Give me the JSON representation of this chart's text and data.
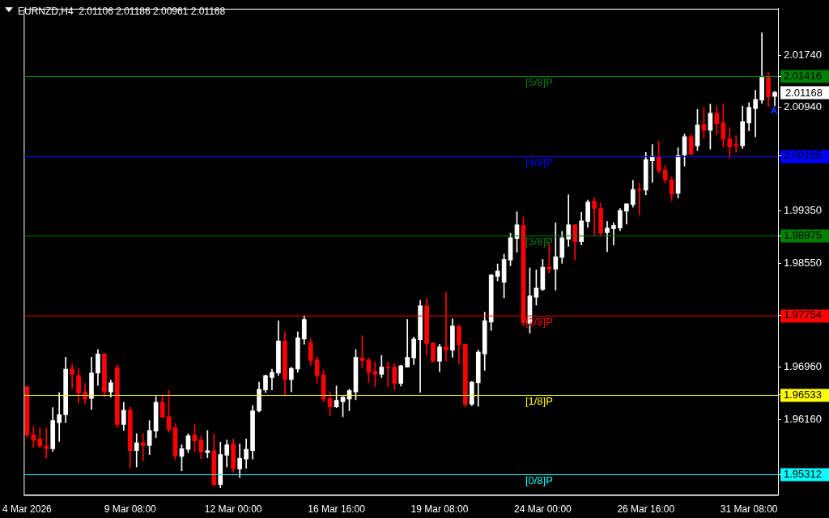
{
  "chart_data": {
    "type": "candlestick",
    "title": "EURNZD,H4  2.01106 2.01186 2.00961 2.01168",
    "categories": [
      "4 Mar 2026",
      null,
      null,
      null,
      null,
      null,
      null,
      null,
      null,
      null,
      null,
      null,
      null,
      null,
      null,
      null,
      "9 Mar 08:00",
      null,
      null,
      null,
      null,
      null,
      null,
      null,
      null,
      null,
      null,
      null,
      null,
      null,
      null,
      null,
      "12 Mar 00:00",
      null,
      null,
      null,
      null,
      null,
      null,
      null,
      null,
      null,
      null,
      null,
      null,
      null,
      null,
      null,
      "16 Mar 16:00",
      null,
      null,
      null,
      null,
      null,
      null,
      null,
      null,
      null,
      null,
      null,
      null,
      null,
      null,
      null,
      "19 Mar 08:00",
      null,
      null,
      null,
      null,
      null,
      null,
      null,
      null,
      null,
      null,
      null,
      null,
      null,
      null,
      null,
      "24 Mar 00:00",
      null,
      null,
      null,
      null,
      null,
      null,
      null,
      null,
      null,
      null,
      null,
      null,
      null,
      null,
      null,
      "26 Mar 16:00",
      null,
      null,
      null,
      null,
      null,
      null,
      null,
      null,
      null,
      null,
      null,
      null,
      null,
      null,
      null,
      "31 Mar 08:00",
      null,
      null,
      null,
      null
    ],
    "ohlc": [
      [
        1.9666,
        1.9667,
        1.9588,
        1.9592
      ],
      [
        1.9592,
        1.9605,
        1.9573,
        1.9584
      ],
      [
        1.9586,
        1.9603,
        1.9572,
        1.9575
      ],
      [
        1.9575,
        1.9603,
        1.9557,
        1.9571
      ],
      [
        1.9571,
        1.9634,
        1.9567,
        1.9614
      ],
      [
        1.9611,
        1.9657,
        1.9582,
        1.9623
      ],
      [
        1.9623,
        1.9711,
        1.9611,
        1.9693
      ],
      [
        1.9693,
        1.9701,
        1.9663,
        1.9685
      ],
      [
        1.9683,
        1.9694,
        1.9641,
        1.9656
      ],
      [
        1.9658,
        1.9671,
        1.964,
        1.9647
      ],
      [
        1.9648,
        1.9711,
        1.9631,
        1.9687
      ],
      [
        1.9687,
        1.9723,
        1.9668,
        1.9716
      ],
      [
        1.9716,
        1.9717,
        1.965,
        1.9658
      ],
      [
        1.9658,
        1.9676,
        1.965,
        1.9672
      ],
      [
        1.9695,
        1.97,
        1.9603,
        1.9608
      ],
      [
        1.9608,
        1.9642,
        1.9599,
        1.963
      ],
      [
        1.963,
        1.9635,
        1.9541,
        1.9568
      ],
      [
        1.9568,
        1.9594,
        1.9543,
        1.958
      ],
      [
        1.958,
        1.9594,
        1.9552,
        1.9576
      ],
      [
        1.9576,
        1.9614,
        1.9562,
        1.9599
      ],
      [
        1.9598,
        1.9651,
        1.9588,
        1.9642
      ],
      [
        1.9642,
        1.9652,
        1.9619,
        1.9619
      ],
      [
        1.962,
        1.966,
        1.9596,
        1.96
      ],
      [
        1.9603,
        1.9609,
        1.9554,
        1.956
      ],
      [
        1.9559,
        1.9577,
        1.9537,
        1.9571
      ],
      [
        1.957,
        1.9594,
        1.9565,
        1.9591
      ],
      [
        1.9592,
        1.9608,
        1.9566,
        1.9583
      ],
      [
        1.9584,
        1.9591,
        1.9555,
        1.9566
      ],
      [
        1.9565,
        1.9599,
        1.9557,
        1.9568
      ],
      [
        1.9568,
        1.9594,
        1.9514,
        1.9516
      ],
      [
        1.9516,
        1.9581,
        1.9511,
        1.9562
      ],
      [
        1.9561,
        1.9584,
        1.9543,
        1.9577
      ],
      [
        1.9578,
        1.9586,
        1.9535,
        1.954
      ],
      [
        1.954,
        1.9578,
        1.9527,
        1.9556
      ],
      [
        1.9555,
        1.9586,
        1.9541,
        1.957
      ],
      [
        1.9568,
        1.9637,
        1.9555,
        1.9629
      ],
      [
        1.9629,
        1.9673,
        1.9627,
        1.9662
      ],
      [
        1.9661,
        1.9684,
        1.9657,
        1.9683
      ],
      [
        1.968,
        1.9693,
        1.9661,
        1.9688
      ],
      [
        1.9687,
        1.9767,
        1.9683,
        1.9736
      ],
      [
        1.9736,
        1.975,
        1.9653,
        1.9677
      ],
      [
        1.9677,
        1.9696,
        1.9658,
        1.9694
      ],
      [
        1.9693,
        1.975,
        1.9688,
        1.9741
      ],
      [
        1.9739,
        1.9775,
        1.9731,
        1.9769
      ],
      [
        1.9733,
        1.9739,
        1.9699,
        1.9706
      ],
      [
        1.9707,
        1.9712,
        1.9671,
        1.9683
      ],
      [
        1.9684,
        1.9691,
        1.9643,
        1.9647
      ],
      [
        1.9648,
        1.9658,
        1.9621,
        1.9635
      ],
      [
        1.9635,
        1.9667,
        1.9634,
        1.9645
      ],
      [
        1.9643,
        1.9651,
        1.962,
        1.965
      ],
      [
        1.9647,
        1.9662,
        1.9629,
        1.966
      ],
      [
        1.9658,
        1.9723,
        1.9646,
        1.9711
      ],
      [
        1.971,
        1.9744,
        1.9695,
        1.9706
      ],
      [
        1.9707,
        1.971,
        1.9672,
        1.9688
      ],
      [
        1.9689,
        1.9704,
        1.9666,
        1.9685
      ],
      [
        1.9685,
        1.9714,
        1.968,
        1.9696
      ],
      [
        1.9696,
        1.9704,
        1.9666,
        1.9695
      ],
      [
        1.9696,
        1.9701,
        1.9661,
        1.9671
      ],
      [
        1.9671,
        1.9699,
        1.9667,
        1.9698
      ],
      [
        1.9696,
        1.9769,
        1.9696,
        1.9711
      ],
      [
        1.971,
        1.9742,
        1.97,
        1.9739
      ],
      [
        1.9738,
        1.9798,
        1.9657,
        1.979
      ],
      [
        1.979,
        1.9801,
        1.9714,
        1.9732
      ],
      [
        1.9733,
        1.9733,
        1.9704,
        1.9705
      ],
      [
        1.9705,
        1.9731,
        1.9689,
        1.9727
      ],
      [
        1.9727,
        1.9811,
        1.9705,
        1.9722
      ],
      [
        1.9722,
        1.977,
        1.9711,
        1.9759
      ],
      [
        1.9759,
        1.9759,
        1.9701,
        1.973
      ],
      [
        1.9731,
        1.9731,
        1.9635,
        1.9639
      ],
      [
        1.9639,
        1.9674,
        1.9637,
        1.9673
      ],
      [
        1.9672,
        1.9722,
        1.9636,
        1.9719
      ],
      [
        1.9716,
        1.978,
        1.9691,
        1.9767
      ],
      [
        1.9765,
        1.9838,
        1.9752,
        1.9837
      ],
      [
        1.9835,
        1.9854,
        1.9828,
        1.9843
      ],
      [
        1.9826,
        1.9869,
        1.9802,
        1.9861
      ],
      [
        1.986,
        1.9901,
        1.9851,
        1.9894
      ],
      [
        1.9893,
        1.9934,
        1.9872,
        1.9914
      ],
      [
        1.9913,
        1.9926,
        1.9759,
        1.9764
      ],
      [
        1.9763,
        1.9848,
        1.9748,
        1.9805
      ],
      [
        1.9803,
        1.9845,
        1.9791,
        1.9817
      ],
      [
        1.9815,
        1.9861,
        1.9813,
        1.9849
      ],
      [
        1.9849,
        1.9885,
        1.984,
        1.9846
      ],
      [
        1.9846,
        1.9917,
        1.9814,
        1.9865
      ],
      [
        1.9864,
        1.9904,
        1.9855,
        1.9894
      ],
      [
        1.9892,
        1.996,
        1.9881,
        1.9914
      ],
      [
        1.9914,
        1.9914,
        1.986,
        1.9888
      ],
      [
        1.9888,
        1.9933,
        1.9883,
        1.992
      ],
      [
        1.9919,
        1.9952,
        1.991,
        1.9949
      ],
      [
        1.995,
        1.9956,
        1.9898,
        1.9939
      ],
      [
        1.9939,
        1.9947,
        1.9897,
        1.9901
      ],
      [
        1.9902,
        1.9919,
        1.9873,
        1.9909
      ],
      [
        1.9908,
        1.9917,
        1.9883,
        1.9913
      ],
      [
        1.9909,
        1.9939,
        1.9905,
        1.9936
      ],
      [
        1.9935,
        1.9946,
        1.9915,
        1.9946
      ],
      [
        1.9945,
        1.9982,
        1.9941,
        1.9968
      ],
      [
        1.9968,
        1.9978,
        1.9929,
        1.9967
      ],
      [
        1.9967,
        2.0025,
        1.996,
        2.0014
      ],
      [
        2.0012,
        2.0037,
        1.9979,
        2.0019
      ],
      [
        2.0019,
        2.0042,
        1.9993,
        1.9997
      ],
      [
        1.9998,
        2.0005,
        1.9978,
        1.9983
      ],
      [
        1.9983,
        1.9987,
        1.9951,
        1.9961
      ],
      [
        1.9962,
        2.0032,
        1.9955,
        2.002
      ],
      [
        2.0021,
        2.0053,
        2.0004,
        2.0049
      ],
      [
        2.0049,
        2.0053,
        2.0021,
        2.0022
      ],
      [
        2.0035,
        2.0091,
        2.0028,
        2.0067
      ],
      [
        2.0068,
        2.0094,
        2.0046,
        2.0059
      ],
      [
        2.0059,
        2.0099,
        2.003,
        2.0085
      ],
      [
        2.0085,
        2.0096,
        2.0052,
        2.0069
      ],
      [
        2.007,
        2.0099,
        2.0033,
        2.0045
      ],
      [
        2.0046,
        2.0063,
        2.0016,
        2.0033
      ],
      [
        2.0037,
        2.0051,
        2.0025,
        2.0035
      ],
      [
        2.0035,
        2.0096,
        2.0031,
        2.0072
      ],
      [
        2.007,
        2.0101,
        2.0058,
        2.0094
      ],
      [
        2.0092,
        2.012,
        2.0049,
        2.0106
      ],
      [
        2.0105,
        2.0208,
        2.01,
        2.014
      ],
      [
        2.014,
        2.0147,
        2.0095,
        2.011
      ],
      [
        2.01106,
        2.01186,
        2.00961,
        2.01168
      ]
    ],
    "colors": [
      "#ff0000",
      "#ff0000",
      "#ff0000",
      "#ff0000",
      "#ffffff",
      "#ffffff",
      "#ffffff",
      "#ff0000",
      "#ff0000",
      "#ff0000",
      "#ffffff",
      "#ffffff",
      "#ff0000",
      "#ffffff",
      "#ff0000",
      "#ffffff",
      "#ff0000",
      "#ffffff",
      "#ff0000",
      "#ffffff",
      "#ffffff",
      "#ff0000",
      "#ff0000",
      "#ff0000",
      "#ffffff",
      "#ffffff",
      "#ff0000",
      "#ff0000",
      "#ffffff",
      "#ff0000",
      "#ffffff",
      "#ffffff",
      "#ff0000",
      "#ffffff",
      "#ffffff",
      "#ffffff",
      "#ffffff",
      "#ffffff",
      "#ffffff",
      "#ffffff",
      "#ff0000",
      "#ffffff",
      "#ffffff",
      "#ffffff",
      "#ff0000",
      "#ff0000",
      "#ff0000",
      "#ff0000",
      "#ffffff",
      "#ffffff",
      "#ffffff",
      "#ffffff",
      "#ff0000",
      "#ff0000",
      "#ff0000",
      "#ffffff",
      "#ff0000",
      "#ff0000",
      "#ffffff",
      "#ffffff",
      "#ffffff",
      "#ffffff",
      "#ff0000",
      "#ff0000",
      "#ffffff",
      "#ff0000",
      "#ffffff",
      "#ff0000",
      "#ff0000",
      "#ffffff",
      "#ffffff",
      "#ffffff",
      "#ffffff",
      "#ffffff",
      "#ffffff",
      "#ffffff",
      "#ffffff",
      "#ff0000",
      "#ffffff",
      "#ffffff",
      "#ffffff",
      "#ff0000",
      "#ffffff",
      "#ffffff",
      "#ffffff",
      "#ff0000",
      "#ffffff",
      "#ffffff",
      "#ff0000",
      "#ff0000",
      "#ffffff",
      "#ffffff",
      "#ffffff",
      "#ffffff",
      "#ffffff",
      "#ff0000",
      "#ffffff",
      "#ffffff",
      "#ff0000",
      "#ff0000",
      "#ff0000",
      "#ffffff",
      "#ffffff",
      "#ff0000",
      "#ffffff",
      "#ff0000",
      "#ffffff",
      "#ff0000",
      "#ff0000",
      "#ff0000",
      "#ff0000",
      "#ffffff",
      "#ffffff",
      "#ffffff",
      "#ffffff",
      "#ff0000",
      "#ffffff"
    ],
    "ylim": [
      1.95,
      2.0245
    ],
    "yticks": [
      {
        "value": 1.95312,
        "label": "1.95312"
      },
      {
        "value": 1.96533,
        "label": "1.96533"
      },
      {
        "value": 1.97754,
        "label": "1.97754"
      },
      {
        "value": 1.98975,
        "label": "1.98975"
      },
      {
        "value": 2.00195,
        "label": "2.00195"
      },
      {
        "value": 2.01416,
        "label": "2.01416"
      },
      {
        "value": 1.9616,
        "label": "1.96160"
      },
      {
        "value": 1.9696,
        "label": "1.96960"
      },
      {
        "value": 1.9855,
        "label": "1.98550"
      },
      {
        "value": 1.9935,
        "label": "1.99350"
      },
      {
        "value": 2.0094,
        "label": "2.00940"
      },
      {
        "value": 2.0174,
        "label": "2.01740"
      }
    ],
    "ref_lines": [
      {
        "axis": "y",
        "value": 2.01416,
        "label": "[5/8]P",
        "color": "#008000"
      },
      {
        "axis": "y",
        "value": 2.00195,
        "label": "[4/8]P",
        "color": "#0000ff"
      },
      {
        "axis": "y",
        "value": 1.98975,
        "label": "[3/8]P",
        "color": "#008000"
      },
      {
        "axis": "y",
        "value": 1.97754,
        "label": "[2/8]P",
        "color": "#ff0000"
      },
      {
        "axis": "y",
        "value": 1.96533,
        "label": "[1/8]P",
        "color": "#ffff00"
      },
      {
        "axis": "y",
        "value": 1.95312,
        "label": "[0/8]P",
        "color": "#00ffff"
      }
    ],
    "annotations": [
      "2.01168"
    ],
    "legend": false
  }
}
